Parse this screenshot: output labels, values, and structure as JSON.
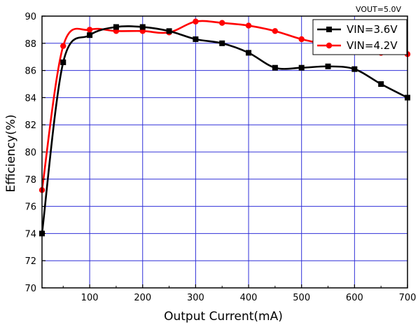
{
  "chart_data": {
    "type": "line",
    "title": "",
    "annotation": "VOUT=5.0V",
    "xlabel": "Output Current(mA)",
    "ylabel": "Efficiency(%)",
    "xlim": [
      10,
      700
    ],
    "ylim": [
      70,
      90
    ],
    "x_ticks": [
      100,
      200,
      300,
      400,
      500,
      600,
      700
    ],
    "y_ticks": [
      70,
      72,
      74,
      76,
      78,
      80,
      82,
      84,
      86,
      88,
      90
    ],
    "grid": true,
    "legend_position": "top-right",
    "series": [
      {
        "name": "VIN=3.6V",
        "color": "#000000",
        "marker": "square",
        "x": [
          10,
          50,
          100,
          150,
          200,
          250,
          300,
          350,
          400,
          450,
          500,
          550,
          600,
          650,
          700
        ],
        "y": [
          74.0,
          86.6,
          88.6,
          89.2,
          89.2,
          88.9,
          88.3,
          88.0,
          87.3,
          86.2,
          86.2,
          86.3,
          86.1,
          85.0,
          84.0
        ]
      },
      {
        "name": "VIN=4.2V",
        "color": "#ff0000",
        "marker": "circle",
        "x": [
          10,
          50,
          100,
          150,
          200,
          250,
          300,
          350,
          400,
          450,
          500,
          550,
          600,
          650,
          700
        ],
        "y": [
          77.2,
          87.8,
          89.0,
          88.9,
          88.9,
          88.8,
          89.6,
          89.5,
          89.3,
          88.9,
          88.3,
          87.9,
          87.5,
          87.3,
          87.2
        ]
      }
    ]
  }
}
